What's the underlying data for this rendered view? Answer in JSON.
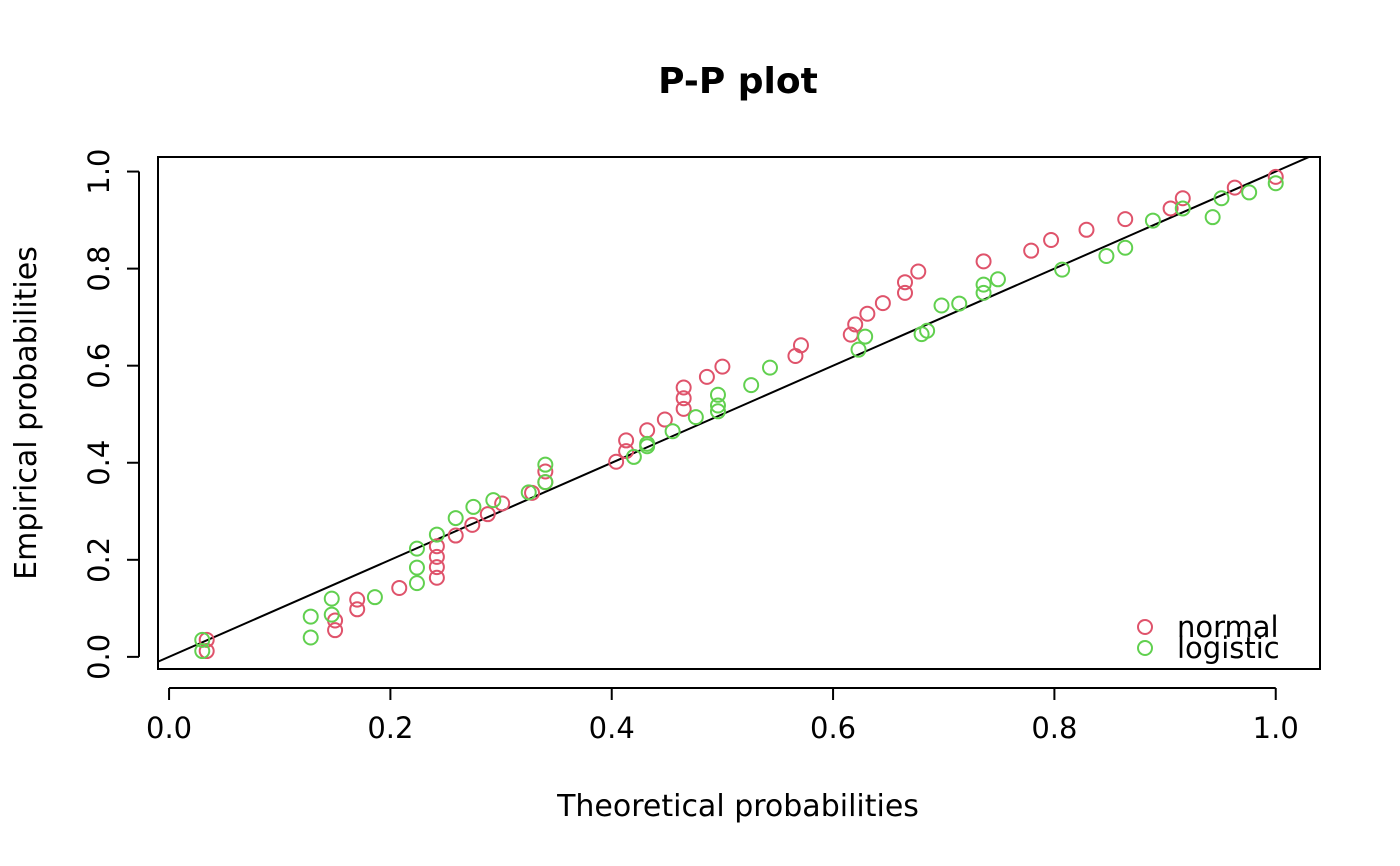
{
  "chart_data": {
    "type": "scatter",
    "title": "P-P plot",
    "xlabel": "Theoretical probabilities",
    "ylabel": "Empirical probabilities",
    "xlim": [
      -0.01,
      1.04
    ],
    "ylim": [
      -0.025,
      1.03
    ],
    "x_ticks": [
      "0.0",
      "0.2",
      "0.4",
      "0.6",
      "0.8",
      "1.0"
    ],
    "y_ticks": [
      "0.0",
      "0.2",
      "0.4",
      "0.6",
      "0.8",
      "1.0"
    ],
    "reference_line": {
      "from": [
        0,
        0
      ],
      "to": [
        1,
        1
      ],
      "color": "#000000"
    },
    "legend": {
      "position": "bottom-right",
      "entries": [
        "normal",
        "logistic"
      ]
    },
    "series": [
      {
        "name": "normal",
        "color": "#DF536B",
        "marker": "open-circle",
        "points": [
          [
            0.034,
            0.012
          ],
          [
            0.034,
            0.035
          ],
          [
            0.15,
            0.055
          ],
          [
            0.15,
            0.075
          ],
          [
            0.17,
            0.098
          ],
          [
            0.17,
            0.118
          ],
          [
            0.208,
            0.142
          ],
          [
            0.242,
            0.163
          ],
          [
            0.242,
            0.185
          ],
          [
            0.242,
            0.206
          ],
          [
            0.242,
            0.228
          ],
          [
            0.259,
            0.25
          ],
          [
            0.274,
            0.272
          ],
          [
            0.288,
            0.294
          ],
          [
            0.301,
            0.316
          ],
          [
            0.328,
            0.338
          ],
          [
            0.34,
            0.36
          ],
          [
            0.34,
            0.382
          ],
          [
            0.404,
            0.402
          ],
          [
            0.413,
            0.424
          ],
          [
            0.413,
            0.446
          ],
          [
            0.432,
            0.467
          ],
          [
            0.448,
            0.489
          ],
          [
            0.465,
            0.511
          ],
          [
            0.465,
            0.533
          ],
          [
            0.465,
            0.555
          ],
          [
            0.486,
            0.577
          ],
          [
            0.5,
            0.598
          ],
          [
            0.566,
            0.62
          ],
          [
            0.571,
            0.642
          ],
          [
            0.616,
            0.664
          ],
          [
            0.62,
            0.685
          ],
          [
            0.631,
            0.707
          ],
          [
            0.645,
            0.729
          ],
          [
            0.665,
            0.75
          ],
          [
            0.665,
            0.772
          ],
          [
            0.677,
            0.794
          ],
          [
            0.736,
            0.815
          ],
          [
            0.779,
            0.837
          ],
          [
            0.797,
            0.859
          ],
          [
            0.829,
            0.88
          ],
          [
            0.864,
            0.902
          ],
          [
            0.905,
            0.924
          ],
          [
            0.916,
            0.945
          ],
          [
            0.963,
            0.967
          ],
          [
            1.0,
            0.989
          ]
        ]
      },
      {
        "name": "logistic",
        "color": "#61D04F",
        "marker": "open-circle",
        "points": [
          [
            0.03,
            0.012
          ],
          [
            0.03,
            0.035
          ],
          [
            0.128,
            0.04
          ],
          [
            0.128,
            0.083
          ],
          [
            0.147,
            0.087
          ],
          [
            0.147,
            0.12
          ],
          [
            0.186,
            0.123
          ],
          [
            0.224,
            0.152
          ],
          [
            0.224,
            0.184
          ],
          [
            0.224,
            0.223
          ],
          [
            0.242,
            0.252
          ],
          [
            0.259,
            0.286
          ],
          [
            0.275,
            0.309
          ],
          [
            0.293,
            0.323
          ],
          [
            0.325,
            0.339
          ],
          [
            0.34,
            0.36
          ],
          [
            0.34,
            0.396
          ],
          [
            0.42,
            0.412
          ],
          [
            0.432,
            0.434
          ],
          [
            0.432,
            0.439
          ],
          [
            0.455,
            0.465
          ],
          [
            0.476,
            0.494
          ],
          [
            0.496,
            0.506
          ],
          [
            0.496,
            0.518
          ],
          [
            0.496,
            0.54
          ],
          [
            0.526,
            0.56
          ],
          [
            0.543,
            0.596
          ],
          [
            0.623,
            0.633
          ],
          [
            0.629,
            0.66
          ],
          [
            0.68,
            0.665
          ],
          [
            0.685,
            0.672
          ],
          [
            0.698,
            0.724
          ],
          [
            0.714,
            0.728
          ],
          [
            0.736,
            0.75
          ],
          [
            0.736,
            0.767
          ],
          [
            0.749,
            0.778
          ],
          [
            0.807,
            0.798
          ],
          [
            0.847,
            0.826
          ],
          [
            0.864,
            0.843
          ],
          [
            0.889,
            0.899
          ],
          [
            0.916,
            0.924
          ],
          [
            0.943,
            0.906
          ],
          [
            0.951,
            0.945
          ],
          [
            0.976,
            0.957
          ],
          [
            1.0,
            0.976
          ]
        ]
      }
    ]
  }
}
